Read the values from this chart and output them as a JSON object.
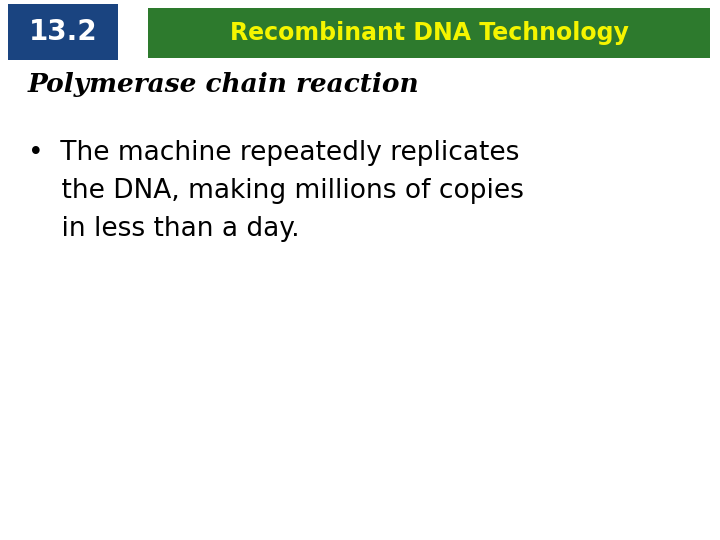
{
  "bg_color": "#ffffff",
  "header_box1_color": "#1a4480",
  "header_box1_text": "13.2",
  "header_box1_text_color": "#ffffff",
  "header_box2_color": "#2d7a2d",
  "header_box2_text": "Recombinant DNA Technology",
  "header_box2_text_color": "#f5f500",
  "slide_title": "Polymerase chain reaction",
  "slide_title_color": "#000000",
  "bullet_line1": "•  The machine repeatedly replicates",
  "bullet_line2": "    the DNA, making millions of copies",
  "bullet_line3": "    in less than a day.",
  "bullet_text_color": "#000000",
  "title_fontsize": 19,
  "bullet_fontsize": 19,
  "header_num_fontsize": 20,
  "header_title_fontsize": 17
}
